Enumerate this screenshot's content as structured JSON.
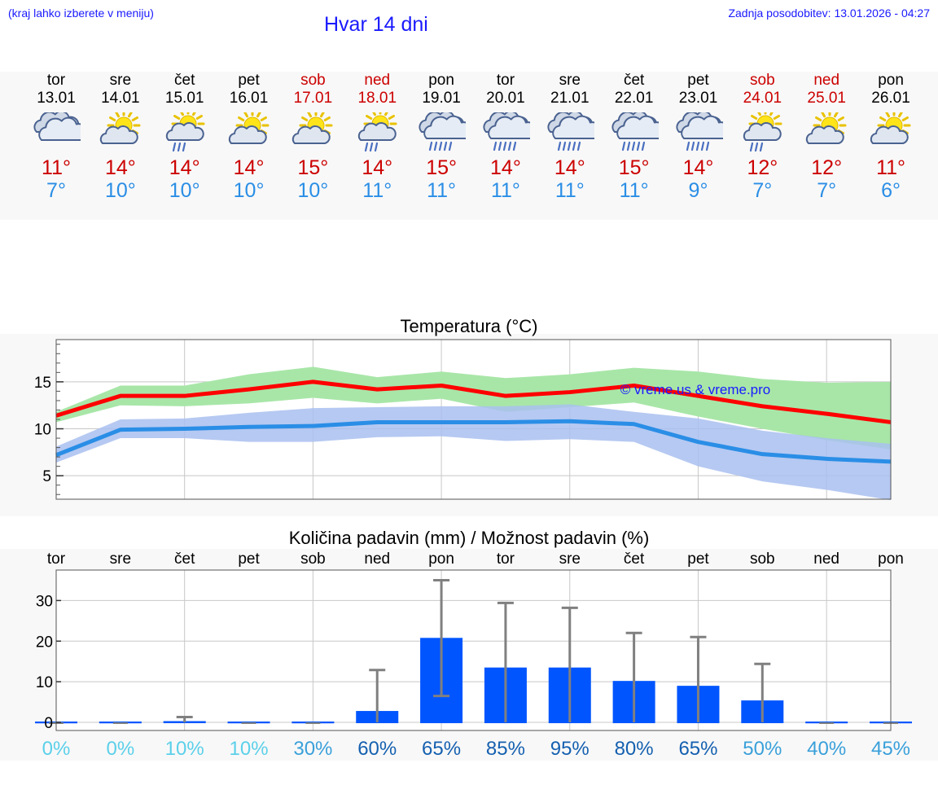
{
  "header": {
    "menu_hint": "(kraj lahko izberete v meniju)",
    "title": "Hvar 14 dni",
    "updated": "Zadnja posodobitev: 13.01.2026 - 04:27"
  },
  "days": [
    {
      "name": "tor",
      "date": "13.01",
      "weekend": false,
      "icon": "cloudy-icon",
      "tmax": "11°",
      "tmin": "7°"
    },
    {
      "name": "sre",
      "date": "14.01",
      "weekend": false,
      "icon": "partly-sunny-icon",
      "tmax": "14°",
      "tmin": "10°"
    },
    {
      "name": "čet",
      "date": "15.01",
      "weekend": false,
      "icon": "sun-cloud-rain-icon",
      "tmax": "14°",
      "tmin": "10°"
    },
    {
      "name": "pet",
      "date": "16.01",
      "weekend": false,
      "icon": "partly-sunny-icon",
      "tmax": "14°",
      "tmin": "10°"
    },
    {
      "name": "sob",
      "date": "17.01",
      "weekend": true,
      "icon": "partly-sunny-icon",
      "tmax": "15°",
      "tmin": "10°"
    },
    {
      "name": "ned",
      "date": "18.01",
      "weekend": true,
      "icon": "sun-cloud-rain-icon",
      "tmax": "14°",
      "tmin": "11°"
    },
    {
      "name": "pon",
      "date": "19.01",
      "weekend": false,
      "icon": "cloud-rain-icon",
      "tmax": "15°",
      "tmin": "11°"
    },
    {
      "name": "tor",
      "date": "20.01",
      "weekend": false,
      "icon": "cloud-rain-icon",
      "tmax": "14°",
      "tmin": "11°"
    },
    {
      "name": "sre",
      "date": "21.01",
      "weekend": false,
      "icon": "cloud-rain-icon",
      "tmax": "14°",
      "tmin": "11°"
    },
    {
      "name": "čet",
      "date": "22.01",
      "weekend": false,
      "icon": "cloud-rain-icon",
      "tmax": "15°",
      "tmin": "11°"
    },
    {
      "name": "pet",
      "date": "23.01",
      "weekend": false,
      "icon": "cloud-rain-icon",
      "tmax": "14°",
      "tmin": "9°"
    },
    {
      "name": "sob",
      "date": "24.01",
      "weekend": true,
      "icon": "sun-cloud-rain-icon",
      "tmax": "12°",
      "tmin": "7°"
    },
    {
      "name": "ned",
      "date": "25.01",
      "weekend": true,
      "icon": "partly-sunny-icon",
      "tmax": "12°",
      "tmin": "7°"
    },
    {
      "name": "pon",
      "date": "26.01",
      "weekend": false,
      "icon": "partly-sunny-icon",
      "tmax": "11°",
      "tmin": "6°"
    }
  ],
  "colors": {
    "max": "#ff0000",
    "min": "#2a8ee6",
    "max_band": "#a8e6a8",
    "min_band": "#a9c0f0",
    "bar": "#0055ff",
    "err": "#808080",
    "header": "#1a1aff"
  },
  "chart_data": [
    {
      "type": "line",
      "title": "Temperatura (°C)",
      "watermark": "© vreme.us & vreme.pro",
      "x": [
        0,
        1,
        2,
        3,
        4,
        5,
        6,
        7,
        8,
        9,
        10,
        11,
        12,
        13
      ],
      "ylim": [
        2.5,
        19.5
      ],
      "yticks": [
        5,
        10,
        15
      ],
      "series": [
        {
          "name": "max",
          "values": [
            11.4,
            13.5,
            13.5,
            14.2,
            15.0,
            14.2,
            14.6,
            13.5,
            13.9,
            14.6,
            13.5,
            12.4,
            11.6,
            10.7
          ]
        },
        {
          "name": "max_low",
          "values": [
            10.7,
            12.5,
            12.4,
            12.7,
            13.3,
            12.7,
            13.2,
            11.8,
            12.3,
            12.8,
            11.3,
            10.0,
            8.8,
            7.8
          ]
        },
        {
          "name": "max_high",
          "values": [
            11.8,
            14.6,
            14.6,
            15.8,
            16.6,
            15.5,
            16.1,
            15.4,
            15.8,
            16.5,
            16.1,
            15.3,
            14.9,
            15.0
          ]
        },
        {
          "name": "min",
          "values": [
            7.2,
            9.9,
            10.0,
            10.2,
            10.3,
            10.7,
            10.7,
            10.7,
            10.8,
            10.5,
            8.6,
            7.3,
            6.8,
            6.5
          ]
        },
        {
          "name": "min_low",
          "values": [
            6.4,
            9.0,
            9.0,
            8.6,
            8.6,
            9.1,
            9.2,
            8.7,
            8.9,
            8.6,
            6.0,
            4.4,
            3.5,
            2.4
          ]
        },
        {
          "name": "min_high",
          "values": [
            8.1,
            11.0,
            11.1,
            11.7,
            12.2,
            12.3,
            12.4,
            12.4,
            12.6,
            11.8,
            11.1,
            9.8,
            9.0,
            8.4
          ]
        }
      ]
    },
    {
      "type": "bar",
      "title": "Količina padavin (mm) / Možnost padavin (%)",
      "categories": [
        "tor",
        "sre",
        "čet",
        "pet",
        "sob",
        "ned",
        "pon",
        "tor",
        "sre",
        "čet",
        "pet",
        "sob",
        "ned",
        "pon"
      ],
      "values": [
        0,
        0,
        0.3,
        0,
        0,
        2.8,
        20.8,
        13.5,
        13.5,
        10.2,
        9.0,
        5.4,
        0,
        0
      ],
      "err_high": [
        0,
        0,
        1.3,
        0,
        0,
        12.9,
        35.0,
        29.4,
        28.2,
        22.0,
        21.0,
        14.4,
        0,
        0
      ],
      "err_low": [
        0,
        0,
        0,
        0,
        0,
        0,
        6.5,
        0,
        0,
        0,
        0,
        0,
        0,
        0
      ],
      "ylim": [
        -2.0,
        37.5
      ],
      "yticks": [
        0,
        10,
        20,
        30
      ],
      "ylabel": "mm",
      "probability": [
        "0%",
        "0%",
        "10%",
        "10%",
        "30%",
        "60%",
        "65%",
        "85%",
        "95%",
        "80%",
        "65%",
        "50%",
        "40%",
        "45%"
      ]
    }
  ]
}
